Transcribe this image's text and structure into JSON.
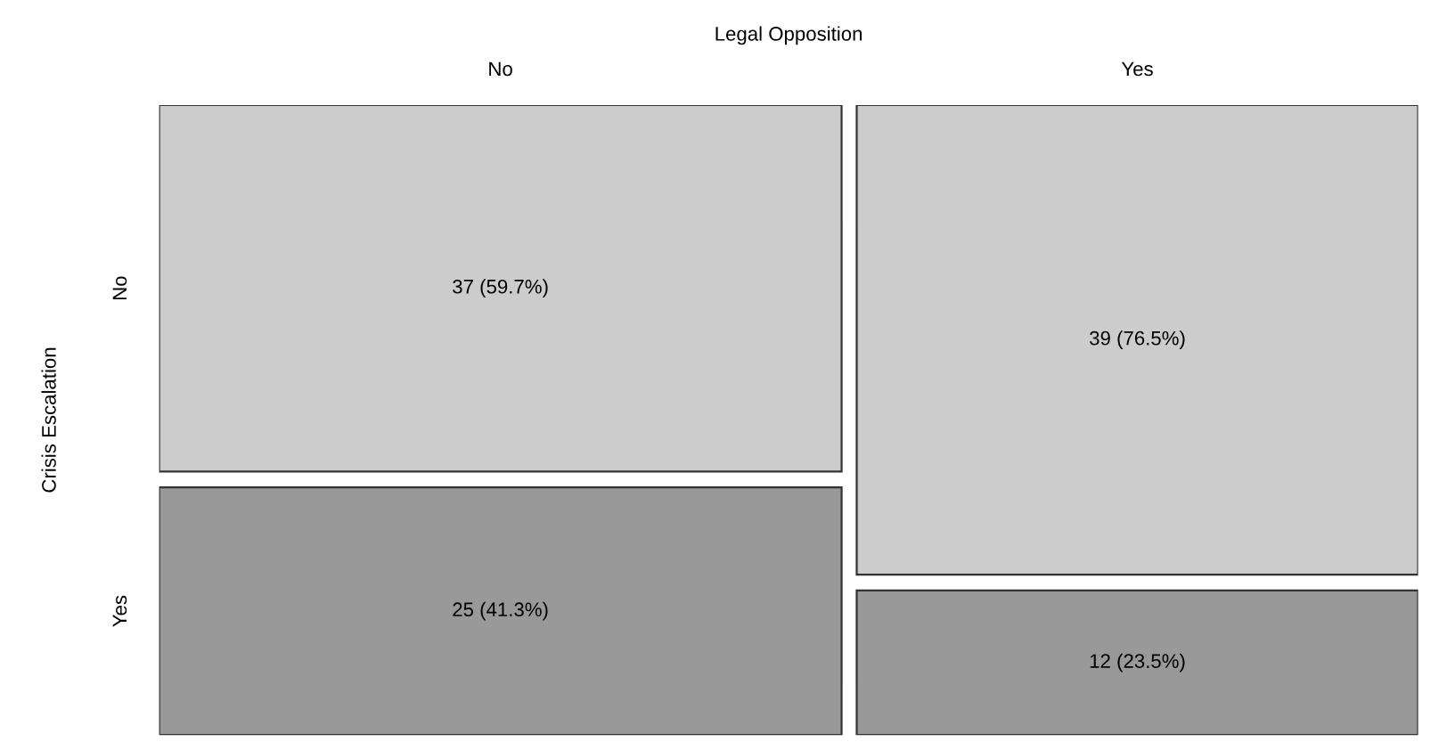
{
  "chart_data": {
    "type": "other",
    "title": "Legal Opposition",
    "ylabel": "Crisis Escalation",
    "categories": [
      "No",
      "Yes"
    ],
    "series": [
      {
        "name": "No",
        "color": "#cccccc",
        "values": [
          37,
          39
        ],
        "value_labels": [
          "37 (59.7%)",
          "39 (76.5%)"
        ]
      },
      {
        "name": "Yes",
        "color": "#999999",
        "values": [
          25,
          12
        ],
        "value_labels": [
          "25 (41.3%)",
          "12 (23.5%)"
        ]
      }
    ]
  }
}
